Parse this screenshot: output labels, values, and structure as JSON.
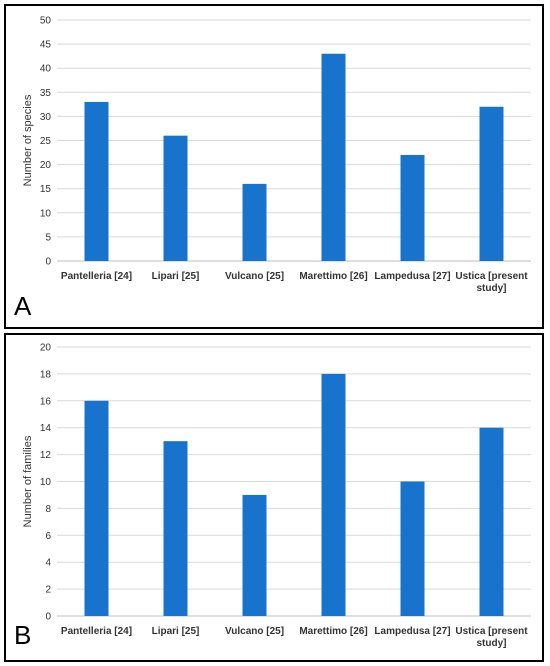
{
  "colors": {
    "bar": "#1873CC",
    "grid": "#D9D9D9",
    "axis": "#BFBFBF"
  },
  "chart_data": [
    {
      "type": "bar",
      "panel_label": "A",
      "categories": [
        [
          "Pantelleria [24]"
        ],
        [
          "Lipari [25]"
        ],
        [
          "Vulcano [25]"
        ],
        [
          "Marettimo [26]"
        ],
        [
          "Lampedusa [27]"
        ],
        [
          "Ustica [present",
          "study]"
        ]
      ],
      "values": [
        33,
        26,
        16,
        43,
        22,
        32
      ],
      "ylabel": "Number of species",
      "ylim": [
        0,
        50
      ],
      "ytick_step": 5,
      "grid": true
    },
    {
      "type": "bar",
      "panel_label": "B",
      "categories": [
        [
          "Pantelleria [24]"
        ],
        [
          "Lipari [25]"
        ],
        [
          "Vulcano [25]"
        ],
        [
          "Marettimo [26]"
        ],
        [
          "Lampedusa [27]"
        ],
        [
          "Ustica [present",
          "study]"
        ]
      ],
      "values": [
        16,
        13,
        9,
        18,
        10,
        14
      ],
      "ylabel": "Number of families",
      "ylim": [
        0,
        20
      ],
      "ytick_step": 2,
      "grid": true
    }
  ]
}
